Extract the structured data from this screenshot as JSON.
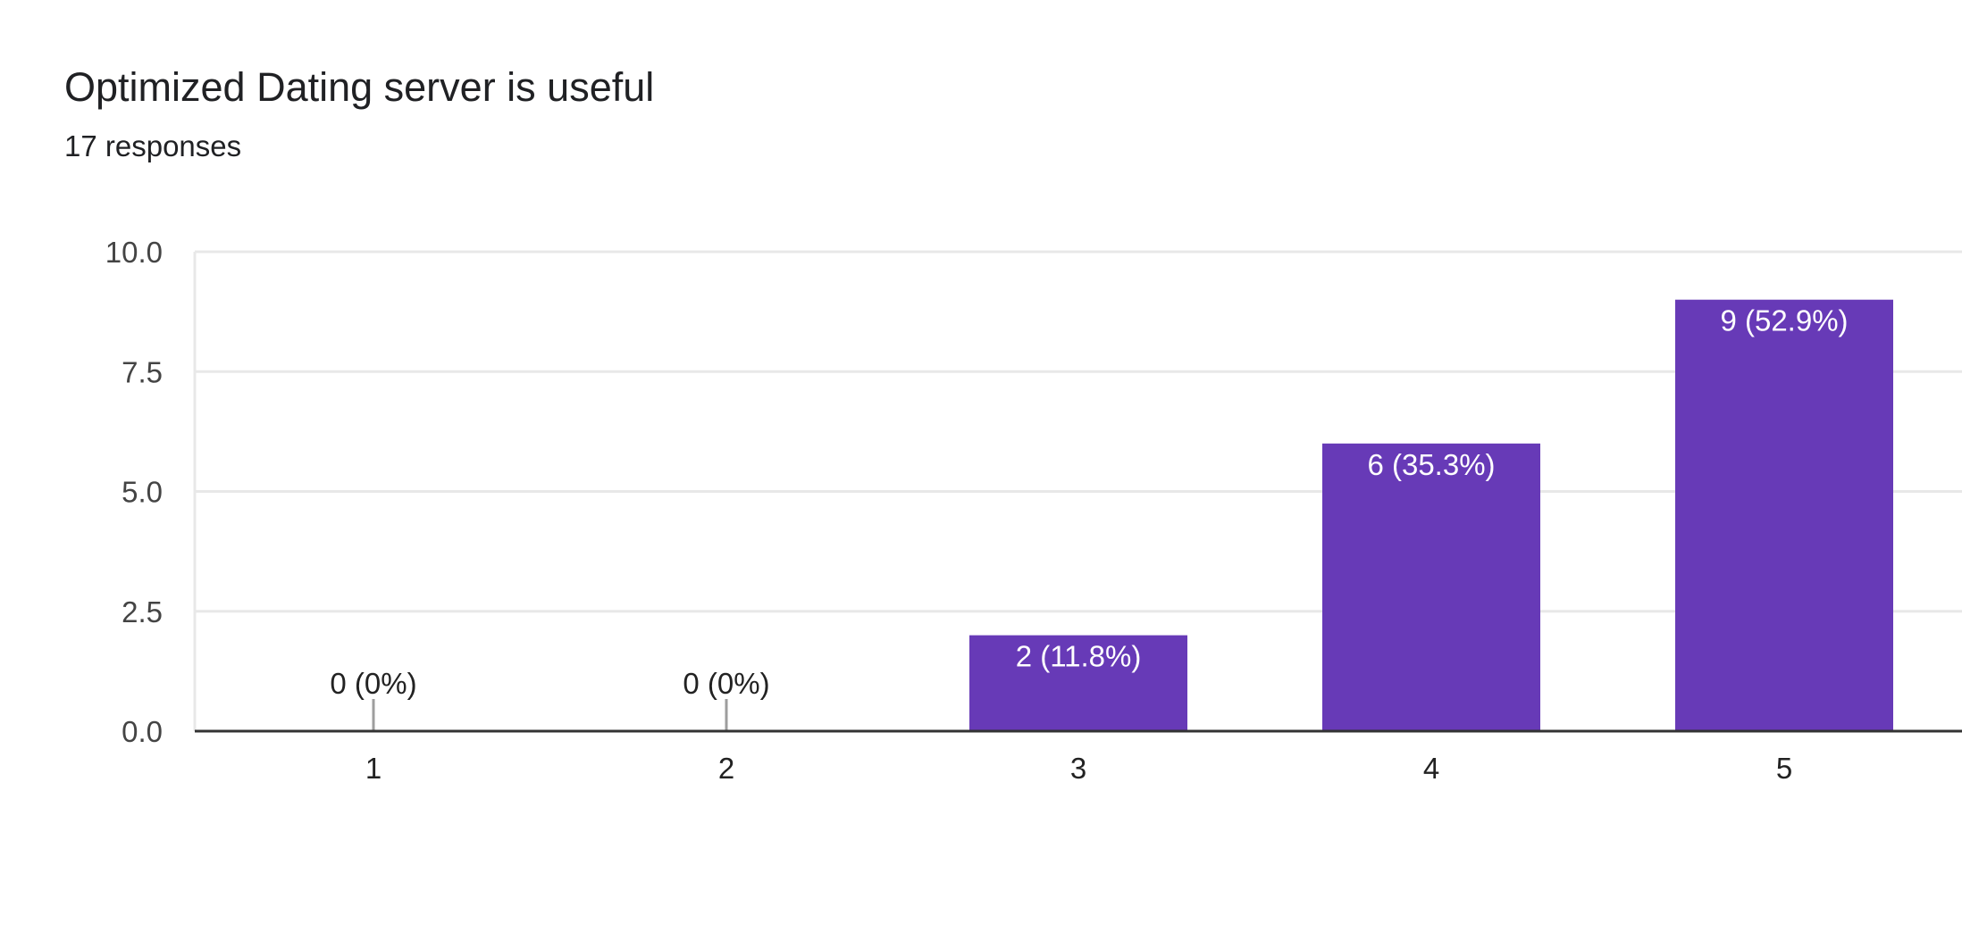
{
  "header": {
    "title": "Optimized Dating server is useful",
    "responses": "17 responses"
  },
  "colors": {
    "bar": "#673ab7",
    "grid": "#e8e8e8",
    "baseline": "#333333",
    "zero_marker": "#9e9e9e"
  },
  "chart_data": {
    "type": "bar",
    "title": "Optimized Dating server is useful",
    "subtitle": "17 responses",
    "categories": [
      "1",
      "2",
      "3",
      "4",
      "5"
    ],
    "values": [
      0,
      0,
      2,
      6,
      9
    ],
    "data_labels": [
      "0 (0%)",
      "0 (0%)",
      "2 (11.8%)",
      "6 (35.3%)",
      "9 (52.9%)"
    ],
    "ylim": [
      0,
      10
    ],
    "yticks": [
      0,
      2.5,
      5,
      7.5,
      10
    ],
    "ytick_labels": [
      "0.0",
      "2.5",
      "5.0",
      "7.5",
      "10.0"
    ],
    "grid": true,
    "xlabel": "",
    "ylabel": ""
  }
}
